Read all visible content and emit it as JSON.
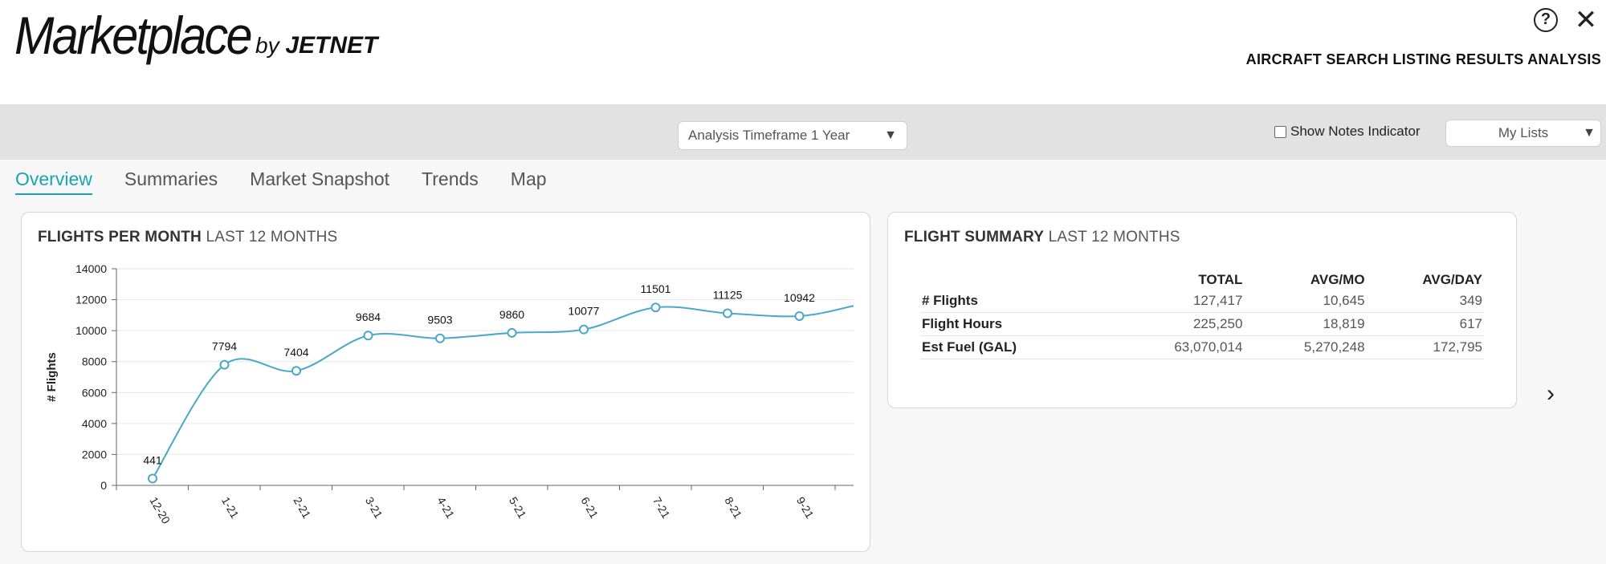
{
  "header": {
    "logo_main": "Marketplace",
    "logo_by": "by",
    "logo_brand": "JETNET",
    "title": "AIRCRAFT SEARCH LISTING RESULTS ANALYSIS",
    "help_icon": "question-circle-icon",
    "close_icon": "close-icon",
    "help_glyph": "?",
    "close_glyph": "✕"
  },
  "toolbar": {
    "timeframe_label": "Analysis Timeframe 1 Year",
    "notes_label": "Show Notes Indicator",
    "notes_checked": false,
    "lists_label": "My Lists",
    "dropdown_glyph": "▼"
  },
  "tabs": [
    {
      "label": "Overview",
      "active": true
    },
    {
      "label": "Summaries",
      "active": false
    },
    {
      "label": "Market Snapshot",
      "active": false
    },
    {
      "label": "Trends",
      "active": false
    },
    {
      "label": "Map",
      "active": false
    }
  ],
  "flights_card": {
    "title_bold": "FLIGHTS PER MONTH",
    "title_rest": "LAST 12 MONTHS"
  },
  "chart_data": {
    "type": "line",
    "title": "FLIGHTS PER MONTH LAST 12 MONTHS",
    "ylabel": "# Flights",
    "xlabel": "",
    "ylim": [
      0,
      14000
    ],
    "yticks": [
      0,
      2000,
      4000,
      6000,
      8000,
      10000,
      12000,
      14000
    ],
    "categories": [
      "12-20",
      "1-21",
      "2-21",
      "3-21",
      "4-21",
      "5-21",
      "6-21",
      "7-21",
      "8-21",
      "9-21"
    ],
    "series": [
      {
        "values": [
          441,
          7794,
          7404,
          9684,
          9503,
          9860,
          10077,
          11501,
          11125,
          10942
        ],
        "color": "#4aa8c8"
      }
    ],
    "trailing_value_estimate": 11600,
    "grid": true,
    "legend": "none"
  },
  "summary_card": {
    "title_bold": "FLIGHT SUMMARY",
    "title_rest": "LAST 12 MONTHS",
    "columns": [
      "",
      "TOTAL",
      "AVG/MO",
      "AVG/DAY"
    ],
    "rows": [
      {
        "label": "# Flights",
        "total": "127,417",
        "avg_mo": "10,645",
        "avg_day": "349"
      },
      {
        "label": "Flight Hours",
        "total": "225,250",
        "avg_mo": "18,819",
        "avg_day": "617"
      },
      {
        "label": "Est Fuel (GAL)",
        "total": "63,070,014",
        "avg_mo": "5,270,248",
        "avg_day": "172,795"
      }
    ]
  },
  "nav": {
    "next_icon": "chevron-right-icon",
    "next_glyph": "›"
  }
}
